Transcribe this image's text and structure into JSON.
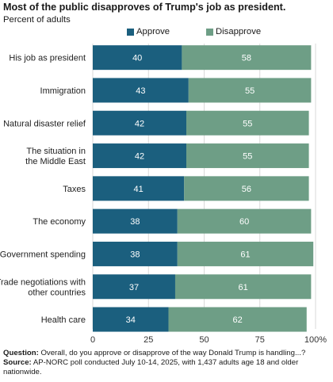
{
  "title": "Most of the public disapproves of Trump's job as president.",
  "subtitle": "Percent of adults",
  "legend": [
    {
      "label": "Approve",
      "color": "#1b5f7e"
    },
    {
      "label": "Disapprove",
      "color": "#6e9e86"
    }
  ],
  "chart_data": {
    "type": "bar",
    "orientation": "horizontal",
    "stacked": true,
    "categories": [
      "His job as president",
      "Immigration",
      "Natural disaster relief",
      "The situation in the Middle East",
      "Taxes",
      "The economy",
      "Government spending",
      "Trade negotiations with other countries",
      "Health care"
    ],
    "category_lines": [
      [
        "His job as president"
      ],
      [
        "Immigration"
      ],
      [
        "Natural disaster relief"
      ],
      [
        "The situation in",
        "the Middle East"
      ],
      [
        "Taxes"
      ],
      [
        "The economy"
      ],
      [
        "Government spending"
      ],
      [
        "Trade negotiations with",
        "other countries"
      ],
      [
        "Health care"
      ]
    ],
    "series": [
      {
        "name": "Approve",
        "color": "#1b5f7e",
        "values": [
          40,
          43,
          42,
          42,
          41,
          38,
          38,
          37,
          34
        ]
      },
      {
        "name": "Disapprove",
        "color": "#6e9e86",
        "values": [
          58,
          55,
          55,
          55,
          56,
          60,
          61,
          61,
          62
        ]
      }
    ],
    "xlim": [
      0,
      100
    ],
    "x_ticks": [
      "0",
      "25",
      "50",
      "75",
      "100%"
    ],
    "grid": true,
    "legend_position": "top-center"
  },
  "notes": {
    "question_label": "Question:",
    "question_text": " Overall, do you approve or disapprove of the way Donald Trump is handling...?",
    "source_label": "Source:",
    "source_text": " AP-NORC poll conducted July 10-14, 2025, with 1,437 adults age 18 and older nationwide."
  }
}
